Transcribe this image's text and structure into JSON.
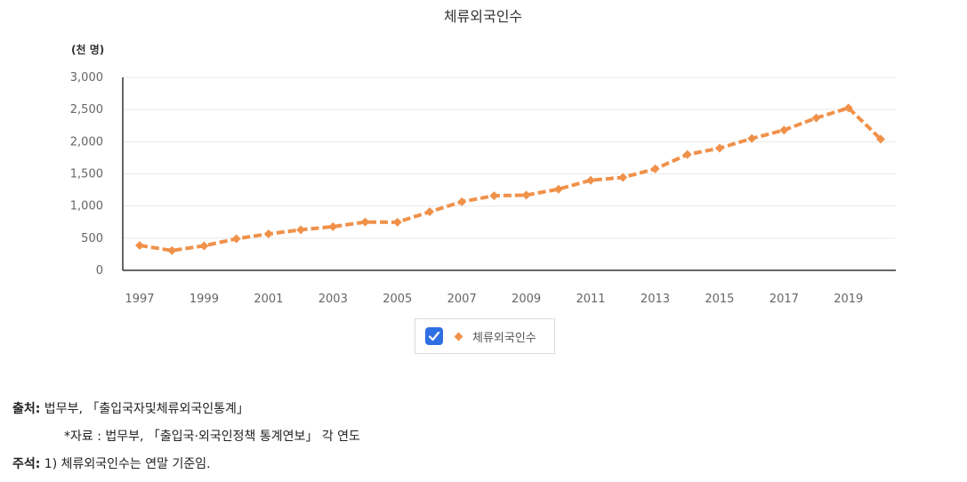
{
  "chart_data": {
    "type": "line",
    "title": "체류외국인수",
    "unit_label": "(천 명)",
    "x": [
      1997,
      1998,
      1999,
      2000,
      2001,
      2002,
      2003,
      2004,
      2005,
      2006,
      2007,
      2008,
      2009,
      2010,
      2011,
      2012,
      2013,
      2014,
      2015,
      2016,
      2017,
      2018,
      2019,
      2020
    ],
    "x_tick_labels": [
      "1997",
      "1999",
      "2001",
      "2003",
      "2005",
      "2007",
      "2009",
      "2011",
      "2013",
      "2015",
      "2017",
      "2019"
    ],
    "series": [
      {
        "name": "체류외국인수",
        "color": "#f0914a",
        "values": [
          387,
          308,
          381,
          491,
          567,
          630,
          679,
          751,
          748,
          910,
          1067,
          1160,
          1170,
          1262,
          1400,
          1445,
          1577,
          1800,
          1900,
          2050,
          2180,
          2370,
          2525,
          2040
        ]
      }
    ],
    "ylim": [
      0,
      3000
    ],
    "y_ticks": [
      0,
      500,
      1000,
      1500,
      2000,
      2500,
      3000
    ],
    "y_tick_labels": [
      "0",
      "500",
      "1,000",
      "1,500",
      "2,000",
      "2,500",
      "3,000"
    ],
    "grid": true,
    "legend": {
      "placement": "bottom-center",
      "label": "체류외국인수",
      "checked": true
    }
  },
  "notes": {
    "source_label": "출처:",
    "source_text": " 법무부, 「출입국자및체류외국인통계」",
    "source_sub": "*자료 : 법무부, 「출입국·외국인정책 통계연보」 각 연도",
    "remark_label": "주석:",
    "remark_text": " 1) 체류외국인수는 연말 기준임."
  }
}
